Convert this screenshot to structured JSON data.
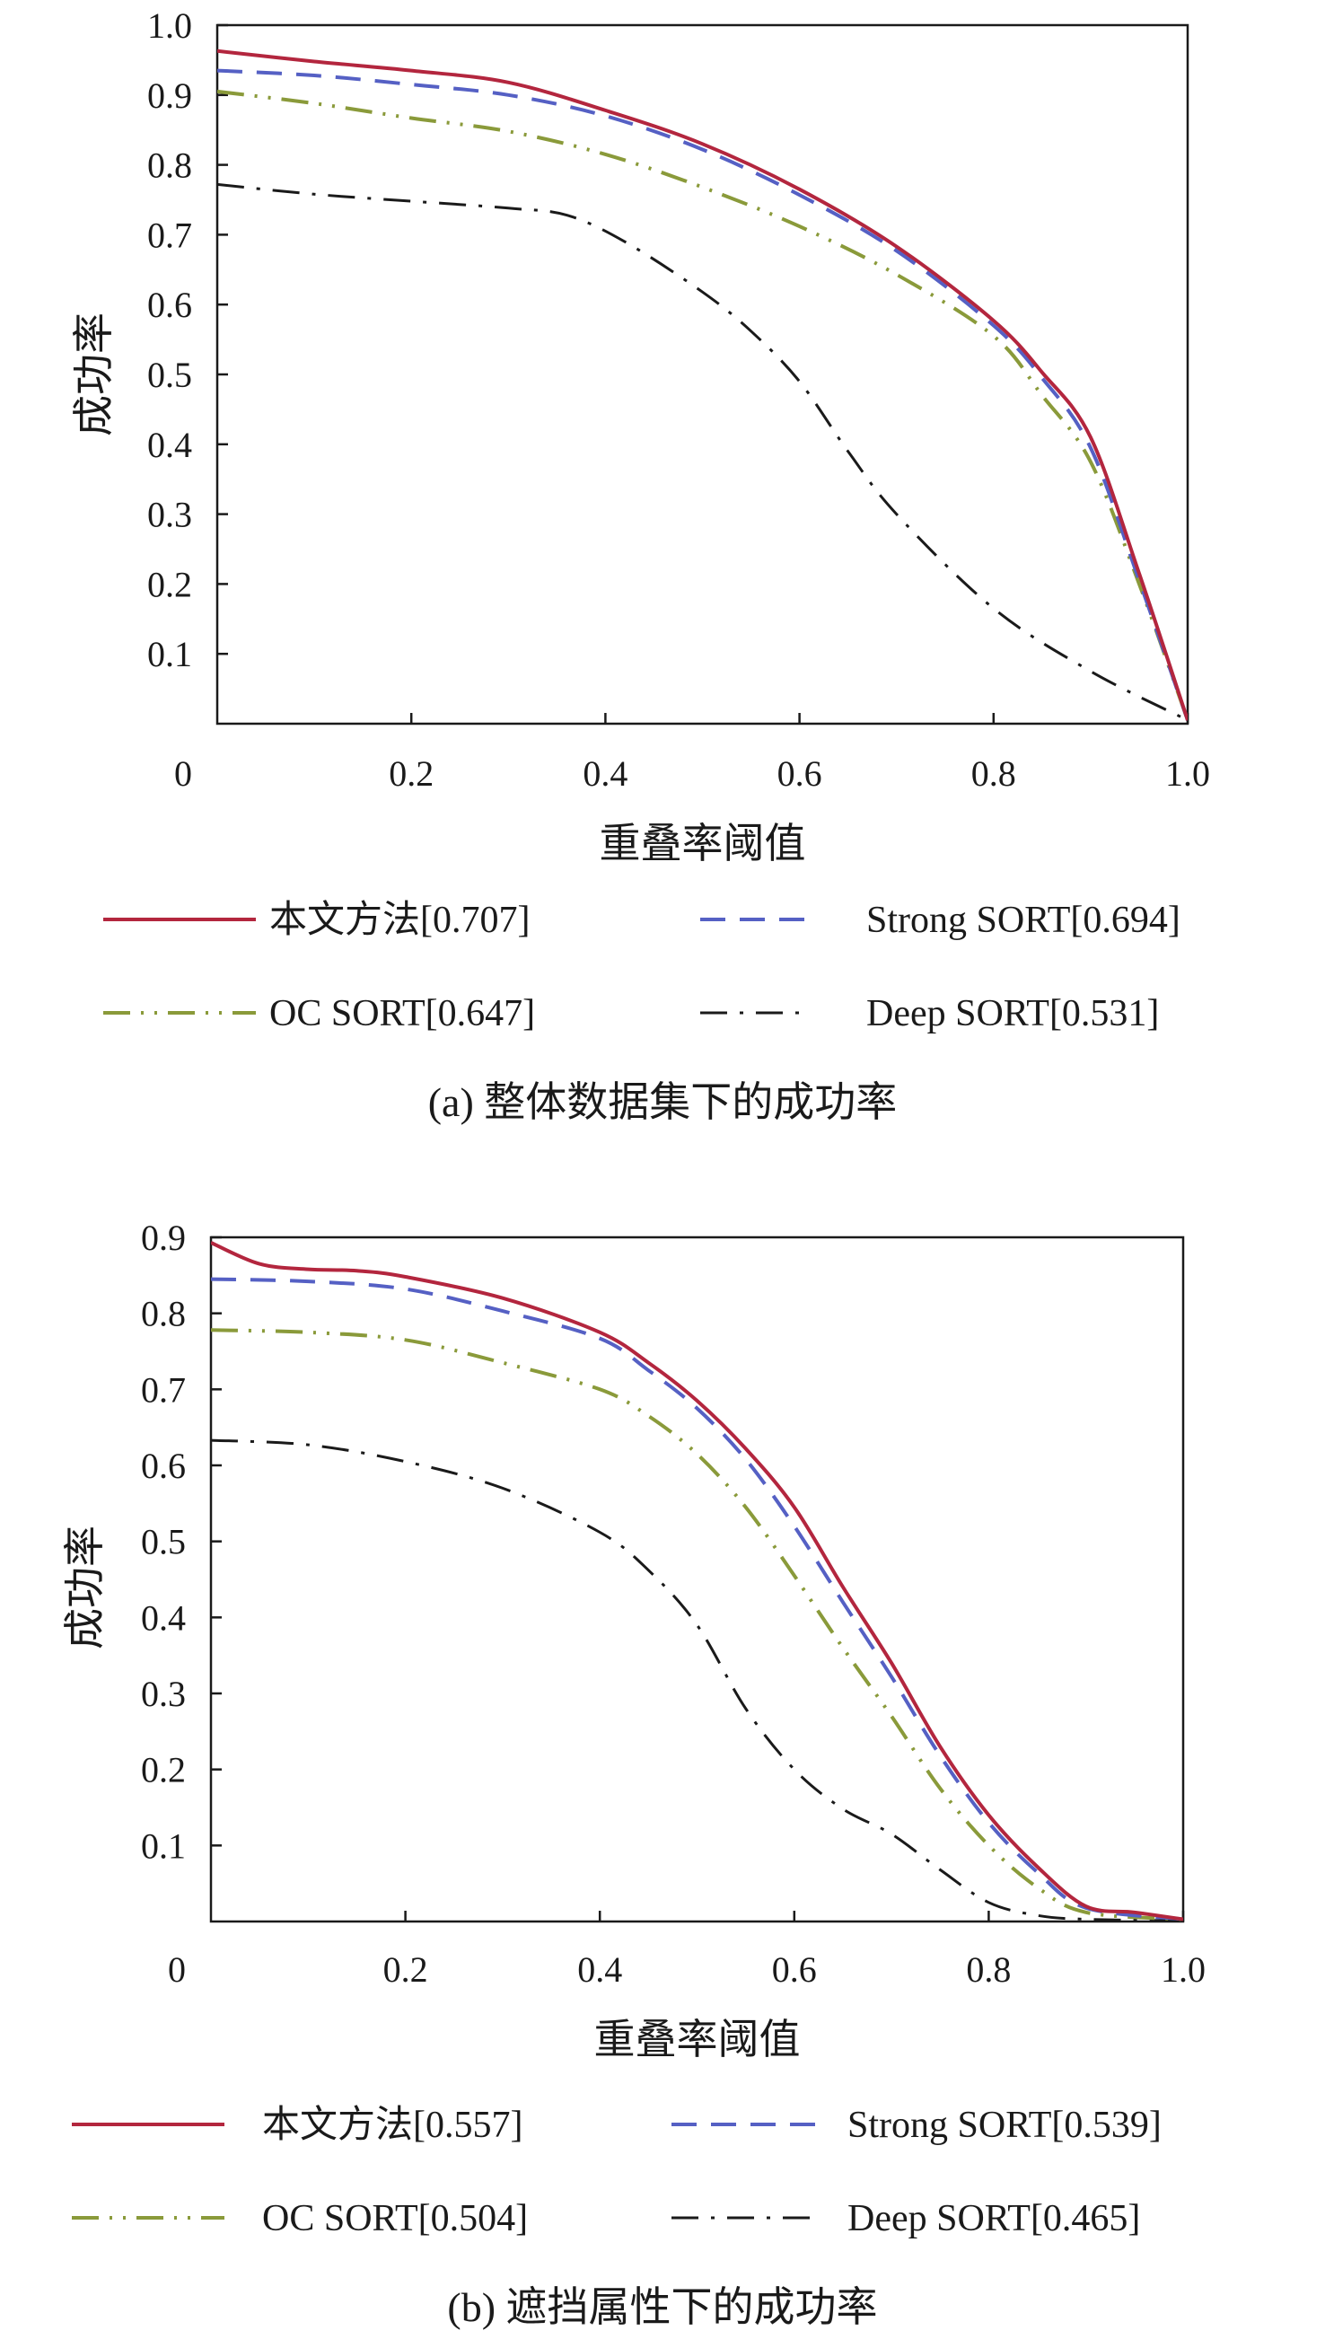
{
  "colors": {
    "ours": "#b3263e",
    "strong": "#5560c4",
    "oc": "#8a9a3a",
    "oc_dots": "#888888",
    "deep": "#1a1a1a",
    "axis": "#1a1a1a"
  },
  "chart_data": [
    {
      "type": "line",
      "caption": "(a) 整体数据集下的成功率",
      "xlabel": "重叠率阈值",
      "ylabel": "成功率",
      "xlim": [
        0,
        1.0
      ],
      "ylim": [
        0,
        1.0
      ],
      "xticks": [
        0.2,
        0.4,
        0.6,
        0.8,
        1.0
      ],
      "xtick_labels": [
        "0.2",
        "0.4",
        "0.6",
        "0.8",
        "1.0"
      ],
      "x_origin_label": "0",
      "yticks": [
        0.1,
        0.2,
        0.3,
        0.4,
        0.5,
        0.6,
        0.7,
        0.8,
        0.9,
        1.0
      ],
      "ytick_labels": [
        "0.1",
        "0.2",
        "0.3",
        "0.4",
        "0.5",
        "0.6",
        "0.7",
        "0.8",
        "0.9",
        "1.0"
      ],
      "legend_position": "bottom",
      "series": [
        {
          "name": "本文方法[0.707]",
          "style": "solid",
          "x": [
            0,
            0.1,
            0.2,
            0.3,
            0.4,
            0.5,
            0.6,
            0.7,
            0.8,
            0.85,
            0.9,
            0.95,
            1.0
          ],
          "y": [
            0.963,
            0.948,
            0.935,
            0.918,
            0.878,
            0.83,
            0.765,
            0.683,
            0.577,
            0.503,
            0.41,
            0.215,
            0.005
          ]
        },
        {
          "name": "Strong SORT[0.694]",
          "style": "dashed",
          "x": [
            0,
            0.1,
            0.2,
            0.3,
            0.4,
            0.5,
            0.6,
            0.7,
            0.8,
            0.85,
            0.9,
            0.95,
            1.0
          ],
          "y": [
            0.935,
            0.928,
            0.915,
            0.9,
            0.87,
            0.822,
            0.757,
            0.677,
            0.57,
            0.495,
            0.395,
            0.205,
            0.005
          ]
        },
        {
          "name": "OC SORT[0.647]",
          "style": "dashdotdot",
          "x": [
            0,
            0.1,
            0.2,
            0.3,
            0.4,
            0.5,
            0.6,
            0.7,
            0.8,
            0.85,
            0.9,
            0.95,
            1.0
          ],
          "y": [
            0.905,
            0.888,
            0.867,
            0.848,
            0.815,
            0.768,
            0.712,
            0.643,
            0.555,
            0.47,
            0.375,
            0.2,
            0.005
          ]
        },
        {
          "name": "Deep SORT[0.531]",
          "style": "dashdot",
          "x": [
            0,
            0.1,
            0.2,
            0.3,
            0.36,
            0.42,
            0.5,
            0.55,
            0.6,
            0.65,
            0.7,
            0.8,
            0.9,
            1.0
          ],
          "y": [
            0.772,
            0.758,
            0.748,
            0.738,
            0.728,
            0.69,
            0.618,
            0.562,
            0.49,
            0.39,
            0.3,
            0.165,
            0.075,
            0.005
          ]
        }
      ]
    },
    {
      "type": "line",
      "caption": "(b) 遮挡属性下的成功率",
      "xlabel": "重叠率阈值",
      "ylabel": "成功率",
      "xlim": [
        0,
        1.0
      ],
      "ylim": [
        0,
        0.9
      ],
      "xticks": [
        0.2,
        0.4,
        0.6,
        0.8,
        1.0
      ],
      "xtick_labels": [
        "0.2",
        "0.4",
        "0.6",
        "0.8",
        "1.0"
      ],
      "x_origin_label": "0",
      "yticks": [
        0.1,
        0.2,
        0.3,
        0.4,
        0.5,
        0.6,
        0.7,
        0.8,
        0.9
      ],
      "ytick_labels": [
        "0.1",
        "0.2",
        "0.3",
        "0.4",
        "0.5",
        "0.6",
        "0.7",
        "0.8",
        "0.9"
      ],
      "legend_position": "bottom",
      "series": [
        {
          "name": "本文方法[0.557]",
          "style": "solid",
          "x": [
            0,
            0.05,
            0.1,
            0.15,
            0.2,
            0.3,
            0.4,
            0.45,
            0.5,
            0.55,
            0.6,
            0.65,
            0.7,
            0.75,
            0.8,
            0.85,
            0.9,
            0.95,
            1.0
          ],
          "y": [
            0.893,
            0.865,
            0.858,
            0.856,
            0.848,
            0.82,
            0.775,
            0.735,
            0.685,
            0.622,
            0.545,
            0.44,
            0.34,
            0.23,
            0.14,
            0.072,
            0.02,
            0.012,
            0.003
          ]
        },
        {
          "name": "Strong SORT[0.539]",
          "style": "dashed",
          "x": [
            0,
            0.1,
            0.2,
            0.3,
            0.4,
            0.45,
            0.5,
            0.55,
            0.6,
            0.65,
            0.7,
            0.75,
            0.8,
            0.85,
            0.9,
            1.0
          ],
          "y": [
            0.845,
            0.842,
            0.832,
            0.803,
            0.767,
            0.725,
            0.675,
            0.608,
            0.52,
            0.42,
            0.322,
            0.218,
            0.13,
            0.065,
            0.018,
            0.003
          ]
        },
        {
          "name": "OC SORT[0.504]",
          "style": "dashdotdot",
          "x": [
            0,
            0.1,
            0.2,
            0.3,
            0.4,
            0.45,
            0.5,
            0.55,
            0.6,
            0.65,
            0.7,
            0.75,
            0.8,
            0.85,
            0.9,
            1.0
          ],
          "y": [
            0.778,
            0.775,
            0.765,
            0.735,
            0.7,
            0.665,
            0.615,
            0.545,
            0.455,
            0.36,
            0.27,
            0.175,
            0.1,
            0.045,
            0.012,
            0.003
          ]
        },
        {
          "name": "Deep SORT[0.465]",
          "style": "dashdot",
          "x": [
            0,
            0.1,
            0.2,
            0.3,
            0.4,
            0.45,
            0.5,
            0.55,
            0.6,
            0.65,
            0.7,
            0.75,
            0.8,
            0.85,
            0.9,
            1.0
          ],
          "y": [
            0.633,
            0.627,
            0.605,
            0.57,
            0.512,
            0.462,
            0.39,
            0.28,
            0.2,
            0.148,
            0.115,
            0.068,
            0.025,
            0.008,
            0.003,
            0.001
          ]
        }
      ]
    }
  ]
}
